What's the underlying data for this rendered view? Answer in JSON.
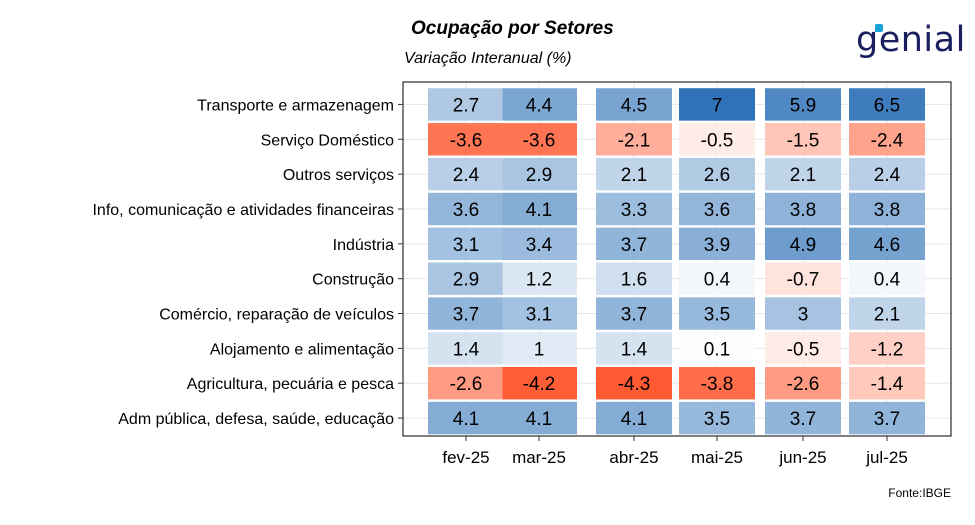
{
  "title": "Ocupação por Setores",
  "subtitle": "Variação Interanual (%)",
  "brand": "genial",
  "source": "Fonte:IBGE",
  "colors": {
    "negative_max": "#ff5a32",
    "neutral": "#ffffff",
    "positive_max": "#2f72b8",
    "panel_border": "#000000",
    "gridline": "#e6e6e6",
    "brand_dark": "#1a1f5e",
    "brand_accent": "#19a4d7"
  },
  "chart_data": {
    "type": "heatmap",
    "x": [
      "fev-25",
      "mar-25",
      "abr-25",
      "mai-25",
      "jun-25",
      "jul-25"
    ],
    "column_groups": [
      [
        0,
        1
      ],
      [
        2
      ],
      [
        3
      ],
      [
        4
      ],
      [
        5
      ]
    ],
    "y": [
      "Transporte e armazenagem",
      "Serviço Doméstico",
      "Outros serviços",
      "Info, comunicação e atividades financeiras",
      "Indústria",
      "Construção",
      "Comércio, reparação de veículos",
      "Alojamento e alimentação",
      "Agricultura, pecuária e pesca",
      "Adm pública, defesa, saúde, educação"
    ],
    "values": [
      [
        2.7,
        4.4,
        4.5,
        7,
        5.9,
        6.5
      ],
      [
        -3.6,
        -3.6,
        -2.1,
        -0.5,
        -1.5,
        -2.4
      ],
      [
        2.4,
        2.9,
        2.1,
        2.6,
        2.1,
        2.4
      ],
      [
        3.6,
        4.1,
        3.3,
        3.6,
        3.8,
        3.8
      ],
      [
        3.1,
        3.4,
        3.7,
        3.9,
        4.9,
        4.6
      ],
      [
        2.9,
        1.2,
        1.6,
        0.4,
        -0.7,
        0.4
      ],
      [
        3.7,
        3.1,
        3.7,
        3.5,
        3,
        2.1
      ],
      [
        1.4,
        1,
        1.4,
        0.1,
        -0.5,
        -1.2
      ],
      [
        -2.6,
        -4.2,
        -4.3,
        -3.8,
        -2.6,
        -1.4
      ],
      [
        4.1,
        4.1,
        4.1,
        3.5,
        3.7,
        3.7
      ]
    ],
    "color_scale": {
      "min": -4.3,
      "mid": 0,
      "max": 7
    },
    "grid": true,
    "legend": "none"
  }
}
